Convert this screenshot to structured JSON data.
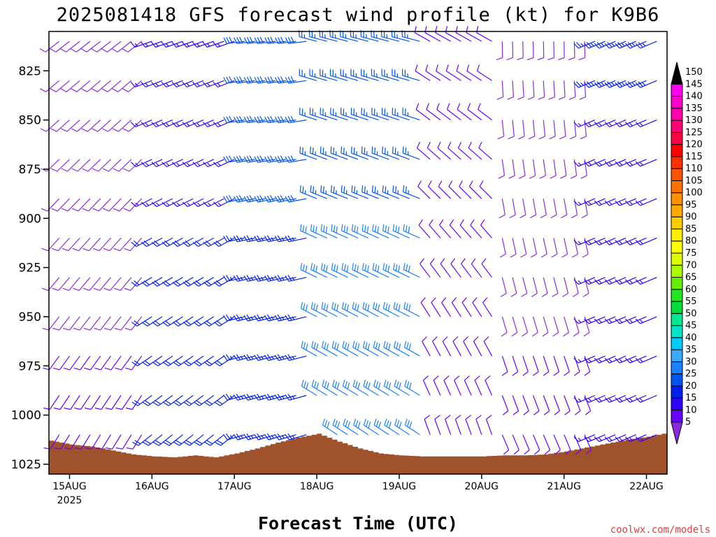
{
  "chart_data": {
    "type": "wind-barb-profile",
    "title": "2025081418 GFS forecast wind profile (kt) for K9B6",
    "xlabel": "Forecast Time (UTC)",
    "ylabel": "",
    "y_axis": {
      "scale": "linear-inverted",
      "ylim": [
        1030,
        805
      ],
      "ticks": [
        825,
        850,
        875,
        900,
        925,
        950,
        975,
        1000,
        1025
      ]
    },
    "x_axis": {
      "xlim": [
        "2025-08-14T18",
        "2025-08-22T06"
      ],
      "ticks": [
        {
          "label": "15AUG",
          "sublabel": "2025",
          "time": "2025-08-15T00"
        },
        {
          "label": "16AUG",
          "time": "2025-08-16T00"
        },
        {
          "label": "17AUG",
          "time": "2025-08-17T00"
        },
        {
          "label": "18AUG",
          "time": "2025-08-18T00"
        },
        {
          "label": "19AUG",
          "time": "2025-08-19T00"
        },
        {
          "label": "20AUG",
          "time": "2025-08-20T00"
        },
        {
          "label": "21AUG",
          "time": "2025-08-21T00"
        },
        {
          "label": "22AUG",
          "time": "2025-08-22T00"
        }
      ]
    },
    "colorbar": {
      "units": "kt",
      "levels": [
        5,
        10,
        15,
        20,
        25,
        30,
        35,
        40,
        45,
        50,
        55,
        60,
        65,
        70,
        75,
        80,
        85,
        90,
        95,
        100,
        105,
        110,
        115,
        120,
        125,
        130,
        135,
        140,
        145,
        150
      ],
      "colors": [
        "#8a2be2",
        "#6a00ff",
        "#3000ff",
        "#0020f0",
        "#0055f0",
        "#1a80ff",
        "#3aaaff",
        "#00ccff",
        "#00e5c8",
        "#00e890",
        "#00dc3a",
        "#22e822",
        "#66ee00",
        "#aaff00",
        "#ddff00",
        "#ffff00",
        "#ffee00",
        "#ffcc00",
        "#ffaa00",
        "#ff9000",
        "#ff7000",
        "#ff5500",
        "#ff3000",
        "#ff0000",
        "#ff0044",
        "#ff0077",
        "#ff00aa",
        "#ff00cc",
        "#ff00ee",
        "#000000"
      ]
    },
    "surface_pressure": {
      "color": "#a0522d",
      "times": [
        "2025-08-14T18",
        "2025-08-15T00",
        "2025-08-15T06",
        "2025-08-15T12",
        "2025-08-15T18",
        "2025-08-16T00",
        "2025-08-16T06",
        "2025-08-16T12",
        "2025-08-16T18",
        "2025-08-17T00",
        "2025-08-17T06",
        "2025-08-17T12",
        "2025-08-17T18",
        "2025-08-18T00",
        "2025-08-18T06",
        "2025-08-18T12",
        "2025-08-18T18",
        "2025-08-19T00",
        "2025-08-19T06",
        "2025-08-19T12",
        "2025-08-19T18",
        "2025-08-20T00",
        "2025-08-20T06",
        "2025-08-20T12",
        "2025-08-20T18",
        "2025-08-21T00",
        "2025-08-21T06",
        "2025-08-21T12",
        "2025-08-21T18",
        "2025-08-22T00",
        "2025-08-22T06"
      ],
      "values": [
        1013.0,
        1015.0,
        1016.0,
        1018.0,
        1020.0,
        1021.0,
        1021.5,
        1020.5,
        1021.5,
        1019.5,
        1017.0,
        1014.0,
        1011.5,
        1009.5,
        1013.5,
        1017.0,
        1019.5,
        1020.5,
        1021.0,
        1021.0,
        1021.0,
        1021.0,
        1020.5,
        1020.5,
        1020.0,
        1018.5,
        1016.5,
        1014.5,
        1012.5,
        1011.0,
        1009.0
      ]
    },
    "wind_barbs": {
      "levels": [
        810,
        830,
        850,
        870,
        890,
        910,
        930,
        950,
        970,
        990,
        1010
      ],
      "time_start": "2025-08-14T18",
      "time_step_hours": 3,
      "note": "speed (kt) and direction (deg) per level, every 3 h"
    }
  },
  "credit": "coolwx.com/models"
}
